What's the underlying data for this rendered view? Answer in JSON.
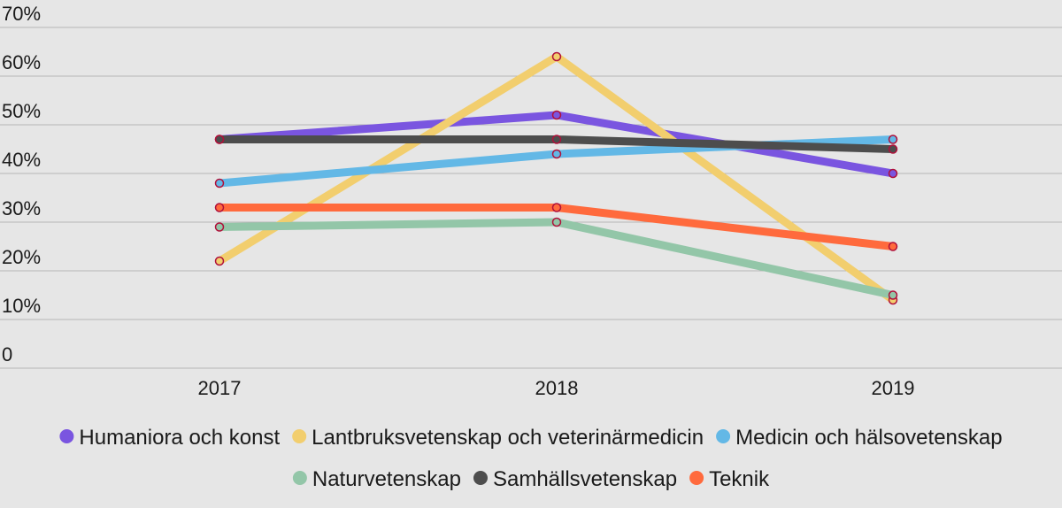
{
  "chart_data": {
    "type": "line",
    "categories": [
      "2017",
      "2018",
      "2019"
    ],
    "yticks": [
      "0",
      "10%",
      "20%",
      "30%",
      "40%",
      "50%",
      "60%",
      "70%"
    ],
    "ylim": [
      0,
      70
    ],
    "grid": true,
    "legend_position": "bottom",
    "series": [
      {
        "name": "Humaniora och konst",
        "color": "#7a55e0",
        "values": [
          47,
          52,
          40
        ]
      },
      {
        "name": "Lantbruksvetenskap och veterinärmedicin",
        "color": "#f2ce6e",
        "values": [
          22,
          64,
          14
        ]
      },
      {
        "name": "Medicin och hälsovetenskap",
        "color": "#63b8e6",
        "values": [
          38,
          44,
          47
        ]
      },
      {
        "name": "Naturvetenskap",
        "color": "#93c6a8",
        "values": [
          29,
          30,
          15
        ]
      },
      {
        "name": "Samhällsvetenskap",
        "color": "#4d4d4d",
        "values": [
          47,
          47,
          45
        ]
      },
      {
        "name": "Teknik",
        "color": "#ff6a3d",
        "values": [
          33,
          33,
          25
        ]
      }
    ],
    "marker_color": "#b0103a"
  }
}
